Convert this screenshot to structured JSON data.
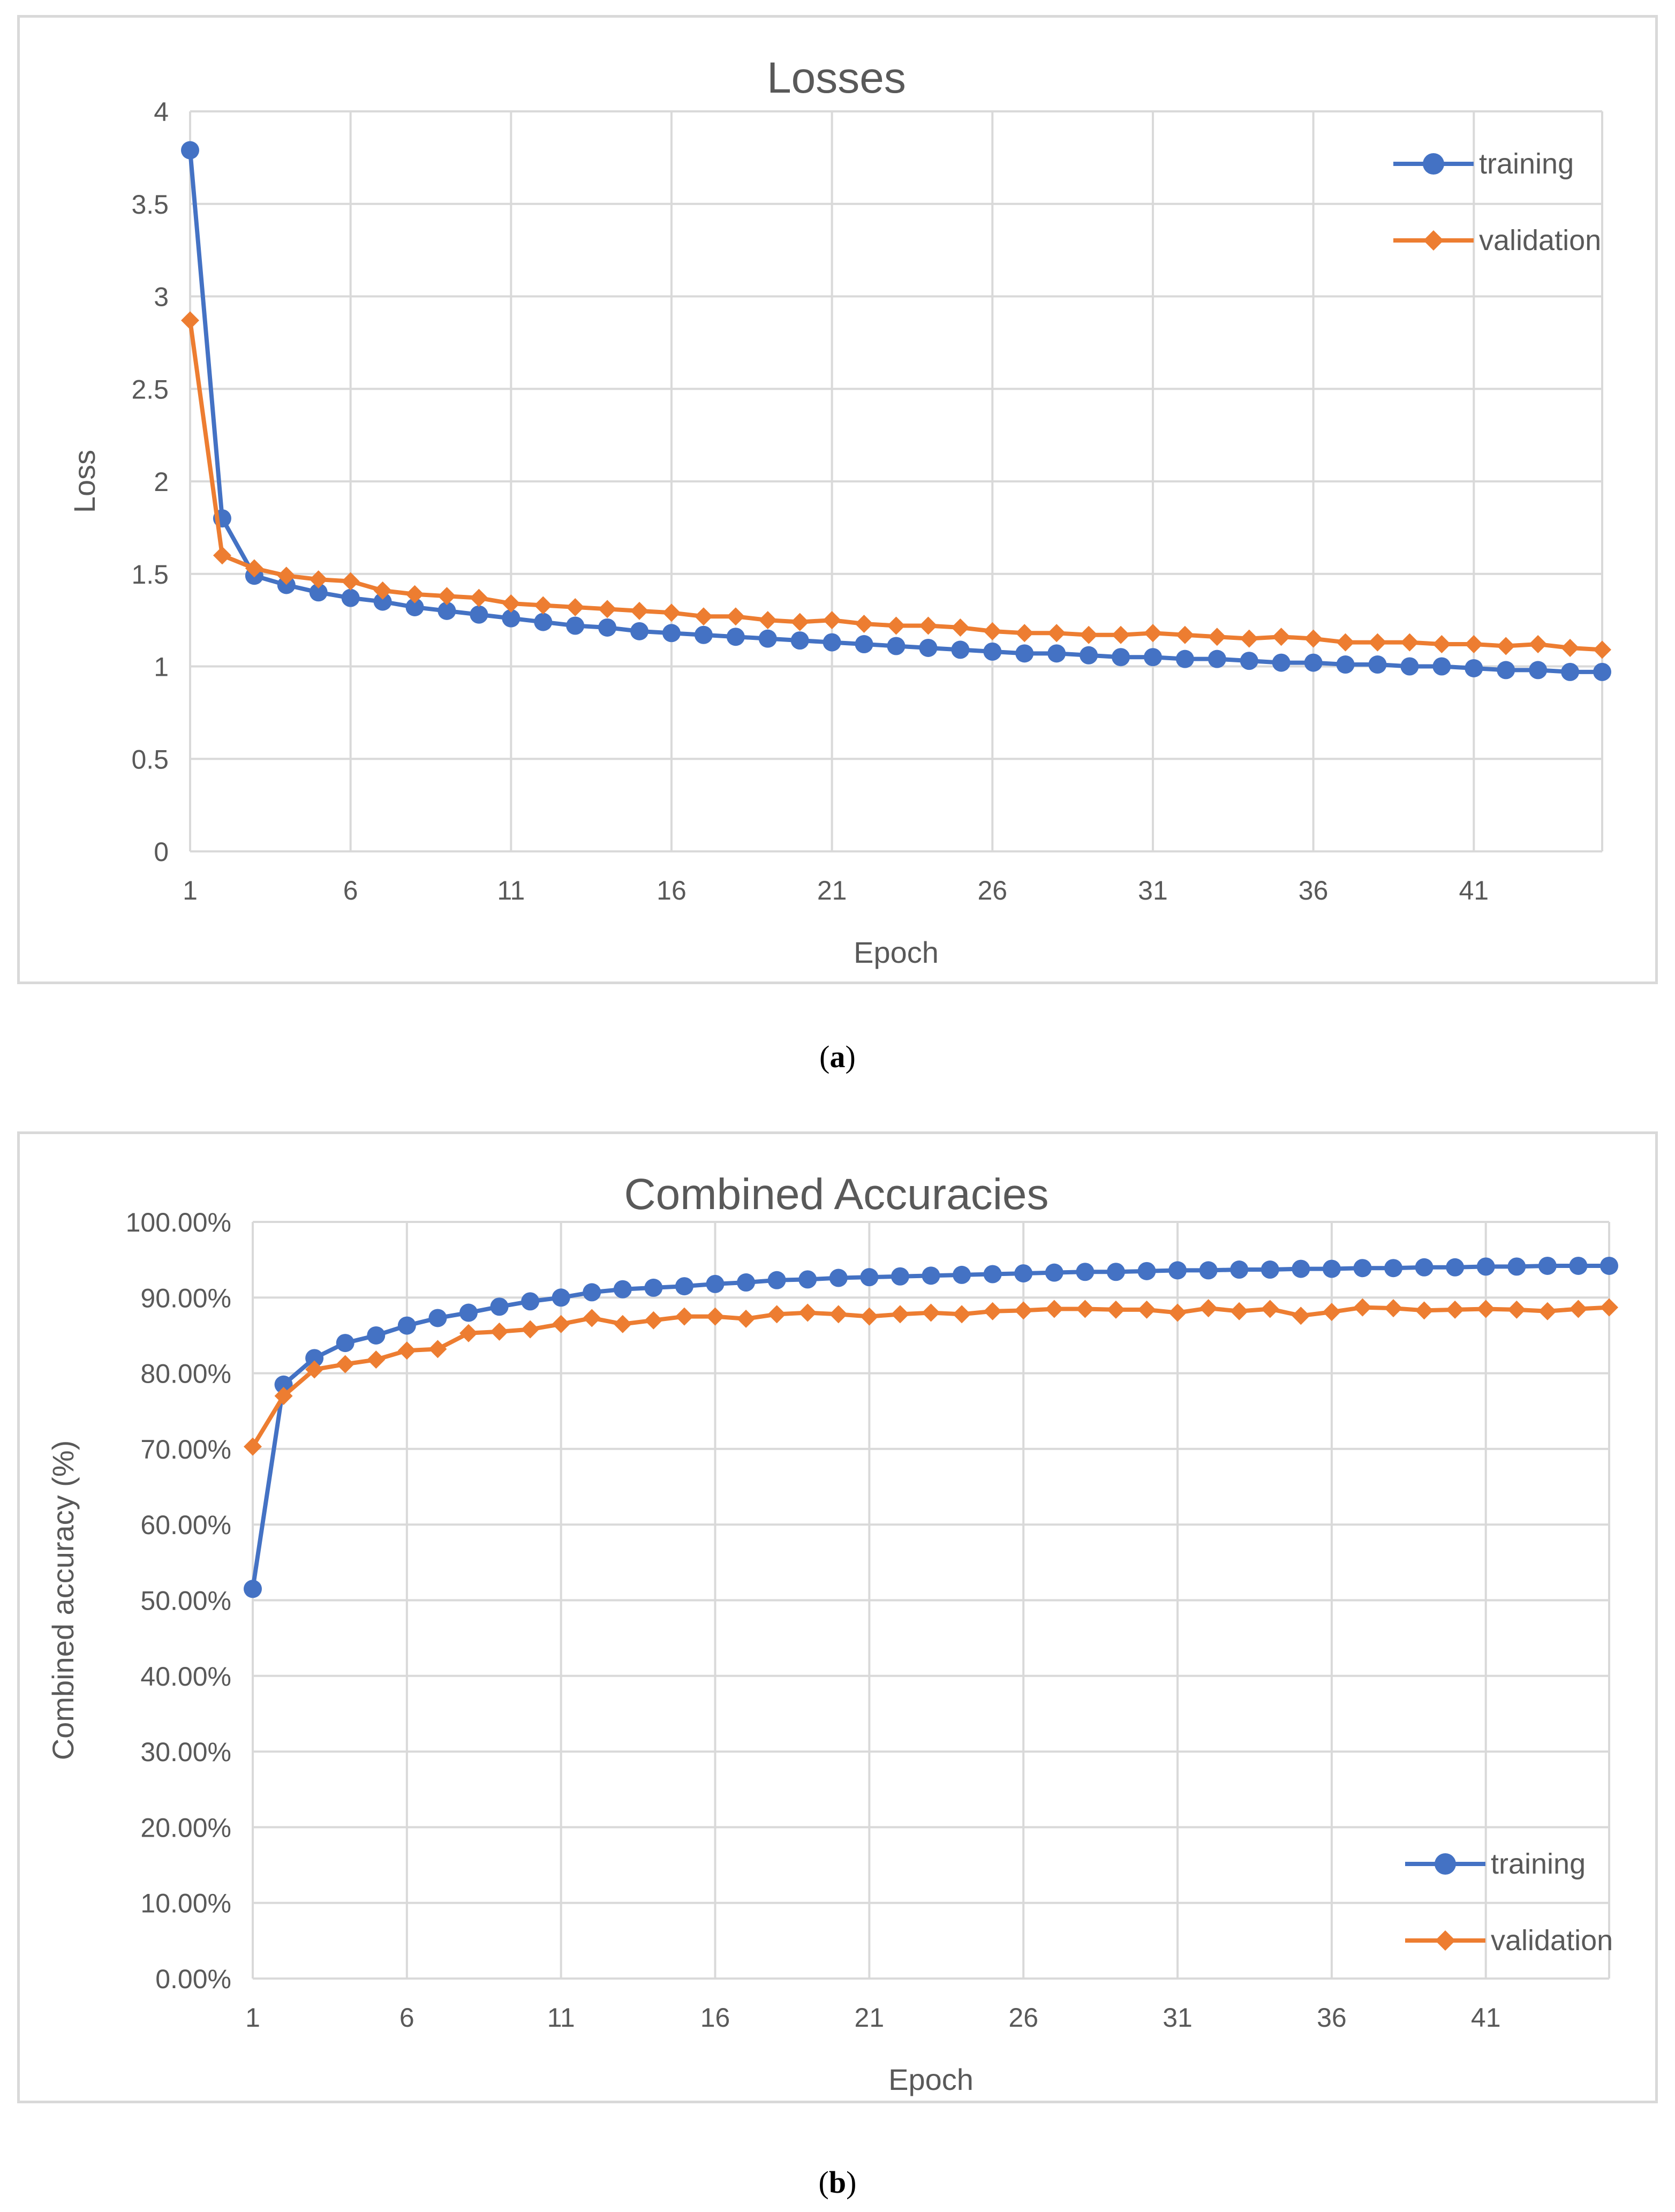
{
  "captions": {
    "a_prefix": "(",
    "a_label": "a",
    "a_suffix": ")",
    "b_prefix": "(",
    "b_label": "b",
    "b_suffix": ")"
  },
  "colors": {
    "training": "#4472C4",
    "validation": "#ED7D31",
    "grid": "#d9d9d9",
    "text": "#595959"
  },
  "chart_data": [
    {
      "type": "line",
      "title": "Losses",
      "xlabel": "Epoch",
      "ylabel": "Loss",
      "x": [
        1,
        2,
        3,
        4,
        5,
        6,
        7,
        8,
        9,
        10,
        11,
        12,
        13,
        14,
        15,
        16,
        17,
        18,
        19,
        20,
        21,
        22,
        23,
        24,
        25,
        26,
        27,
        28,
        29,
        30,
        31,
        32,
        33,
        34,
        35,
        36,
        37,
        38,
        39,
        40,
        41,
        42,
        43,
        44,
        45
      ],
      "xticks": [
        "1",
        "6",
        "11",
        "16",
        "21",
        "26",
        "31",
        "36",
        "41"
      ],
      "xtick_values": [
        1,
        6,
        11,
        16,
        21,
        26,
        31,
        36,
        41
      ],
      "xlim": [
        1,
        45
      ],
      "ylim": [
        0,
        4
      ],
      "yticks": [
        "0",
        "0.5",
        "1",
        "1.5",
        "2",
        "2.5",
        "3",
        "3.5",
        "4"
      ],
      "ytick_values": [
        0,
        0.5,
        1,
        1.5,
        2,
        2.5,
        3,
        3.5,
        4
      ],
      "legend_position": "top-right",
      "series": [
        {
          "name": "training",
          "marker": "circle",
          "values": [
            3.79,
            1.8,
            1.49,
            1.44,
            1.4,
            1.37,
            1.35,
            1.32,
            1.3,
            1.28,
            1.26,
            1.24,
            1.22,
            1.21,
            1.19,
            1.18,
            1.17,
            1.16,
            1.15,
            1.14,
            1.13,
            1.12,
            1.11,
            1.1,
            1.09,
            1.08,
            1.07,
            1.07,
            1.06,
            1.05,
            1.05,
            1.04,
            1.04,
            1.03,
            1.02,
            1.02,
            1.01,
            1.01,
            1.0,
            1.0,
            0.99,
            0.98,
            0.98,
            0.97,
            0.97
          ]
        },
        {
          "name": "validation",
          "marker": "diamond",
          "values": [
            2.87,
            1.6,
            1.53,
            1.49,
            1.47,
            1.46,
            1.41,
            1.39,
            1.38,
            1.37,
            1.34,
            1.33,
            1.32,
            1.31,
            1.3,
            1.29,
            1.27,
            1.27,
            1.25,
            1.24,
            1.25,
            1.23,
            1.22,
            1.22,
            1.21,
            1.19,
            1.18,
            1.18,
            1.17,
            1.17,
            1.18,
            1.17,
            1.16,
            1.15,
            1.16,
            1.15,
            1.13,
            1.13,
            1.13,
            1.12,
            1.12,
            1.11,
            1.12,
            1.1,
            1.09
          ]
        }
      ]
    },
    {
      "type": "line",
      "title": "Combined Accuracies",
      "xlabel": "Epoch",
      "ylabel": "Combined accuracy (%)",
      "x": [
        1,
        2,
        3,
        4,
        5,
        6,
        7,
        8,
        9,
        10,
        11,
        12,
        13,
        14,
        15,
        16,
        17,
        18,
        19,
        20,
        21,
        22,
        23,
        24,
        25,
        26,
        27,
        28,
        29,
        30,
        31,
        32,
        33,
        34,
        35,
        36,
        37,
        38,
        39,
        40,
        41,
        42,
        43,
        44,
        45
      ],
      "xticks": [
        "1",
        "6",
        "11",
        "16",
        "21",
        "26",
        "31",
        "36",
        "41"
      ],
      "xtick_values": [
        1,
        6,
        11,
        16,
        21,
        26,
        31,
        36,
        41
      ],
      "xlim": [
        1,
        45
      ],
      "ylim": [
        0,
        100
      ],
      "yticks": [
        "0.00%",
        "10.00%",
        "20.00%",
        "30.00%",
        "40.00%",
        "50.00%",
        "60.00%",
        "70.00%",
        "80.00%",
        "90.00%",
        "100.00%"
      ],
      "ytick_values": [
        0,
        10,
        20,
        30,
        40,
        50,
        60,
        70,
        80,
        90,
        100
      ],
      "legend_position": "bottom-right",
      "series": [
        {
          "name": "training",
          "marker": "circle",
          "values": [
            51.5,
            78.5,
            82.0,
            84.0,
            85.0,
            86.3,
            87.3,
            88.0,
            88.8,
            89.5,
            90.0,
            90.7,
            91.1,
            91.3,
            91.5,
            91.8,
            92.0,
            92.3,
            92.4,
            92.6,
            92.7,
            92.8,
            92.9,
            93.0,
            93.1,
            93.2,
            93.3,
            93.4,
            93.4,
            93.5,
            93.6,
            93.6,
            93.7,
            93.7,
            93.8,
            93.8,
            93.9,
            93.9,
            94.0,
            94.0,
            94.1,
            94.1,
            94.2,
            94.2,
            94.2
          ]
        },
        {
          "name": "validation",
          "marker": "diamond",
          "values": [
            70.3,
            77.0,
            80.5,
            81.2,
            81.8,
            83.0,
            83.2,
            85.3,
            85.5,
            85.8,
            86.5,
            87.3,
            86.5,
            87.0,
            87.5,
            87.5,
            87.2,
            87.8,
            88.0,
            87.8,
            87.5,
            87.8,
            88.0,
            87.8,
            88.2,
            88.3,
            88.5,
            88.5,
            88.4,
            88.4,
            88.0,
            88.6,
            88.2,
            88.5,
            87.6,
            88.1,
            88.7,
            88.6,
            88.3,
            88.4,
            88.5,
            88.4,
            88.2,
            88.5,
            88.7
          ]
        }
      ]
    }
  ]
}
